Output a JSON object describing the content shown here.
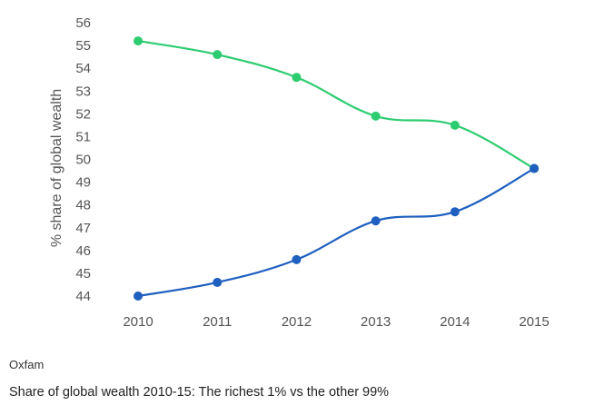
{
  "chart_data": {
    "type": "line",
    "title": "",
    "xlabel": "",
    "ylabel": "% share of global wealth",
    "categories": [
      "2010",
      "2011",
      "2012",
      "2013",
      "2014",
      "2015"
    ],
    "ylim": [
      44,
      56
    ],
    "yticks": [
      44,
      45,
      46,
      47,
      48,
      49,
      50,
      51,
      52,
      53,
      54,
      55,
      56
    ],
    "grid": false,
    "series": [
      {
        "color": "#2ecc71",
        "values": [
          55.2,
          54.6,
          53.6,
          51.9,
          51.5,
          49.6
        ]
      },
      {
        "color": "#1f5fbf",
        "values": [
          44.0,
          44.6,
          45.6,
          47.3,
          47.7,
          49.6
        ]
      }
    ]
  },
  "footer": {
    "source": "Oxfam",
    "caption": "Share of global wealth 2010-15: The richest 1% vs the other 99%"
  }
}
